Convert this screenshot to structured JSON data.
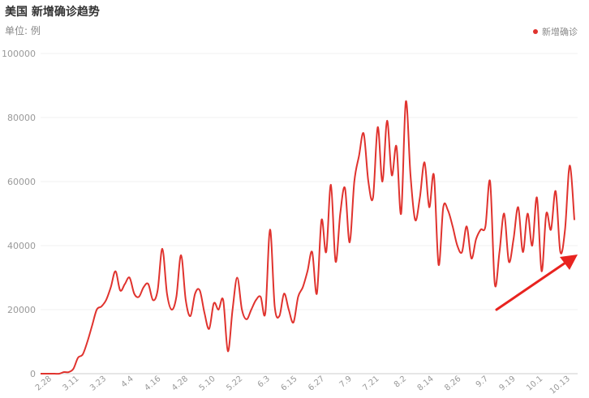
{
  "title": "美国 新增确诊趋势",
  "unit_label": "单位: 例",
  "colors": {
    "line": "#e0332e",
    "arrow": "#e8231f",
    "grid": "#f0f0f0",
    "axis": "#cccccc"
  },
  "chart_data": {
    "type": "line",
    "title": "美国 新增确诊趋势",
    "ylabel": "",
    "xlabel": "",
    "ylim": [
      0,
      100000
    ],
    "y_ticks": [
      0,
      20000,
      40000,
      60000,
      80000,
      100000
    ],
    "y_tick_labels": [
      "0",
      "20000",
      "40000",
      "60000",
      "80000",
      "100000"
    ],
    "x_tick_labels": [
      "2.28",
      "3.11",
      "3.23",
      "4.4",
      "4.16",
      "4.28",
      "5.10",
      "5.22",
      "6.3",
      "6.15",
      "6.27",
      "7.9",
      "7.21",
      "8.2",
      "8.14",
      "8.26",
      "9.7",
      "9.19",
      "10.1",
      "10.13"
    ],
    "grid": true,
    "legend_position": "top-right",
    "series": [
      {
        "name": "新增确诊",
        "x": [
          "2.28",
          "3.1",
          "3.3",
          "3.5",
          "3.7",
          "3.9",
          "3.11",
          "3.13",
          "3.15",
          "3.17",
          "3.19",
          "3.21",
          "3.23",
          "3.25",
          "3.27",
          "3.29",
          "3.31",
          "4.2",
          "4.4",
          "4.6",
          "4.8",
          "4.10",
          "4.12",
          "4.14",
          "4.16",
          "4.18",
          "4.20",
          "4.22",
          "4.24",
          "4.26",
          "4.28",
          "4.30",
          "5.2",
          "5.4",
          "5.6",
          "5.8",
          "5.10",
          "5.12",
          "5.14",
          "5.16",
          "5.18",
          "5.20",
          "5.22",
          "5.24",
          "5.26",
          "5.28",
          "5.30",
          "6.1",
          "6.3",
          "6.5",
          "6.7",
          "6.9",
          "6.11",
          "6.13",
          "6.15",
          "6.17",
          "6.19",
          "6.21",
          "6.23",
          "6.25",
          "6.27",
          "6.29",
          "7.1",
          "7.3",
          "7.5",
          "7.7",
          "7.9",
          "7.11",
          "7.13",
          "7.15",
          "7.17",
          "7.19",
          "7.21",
          "7.23",
          "7.25",
          "7.27",
          "7.29",
          "7.31",
          "8.2",
          "8.4",
          "8.6",
          "8.8",
          "8.10",
          "8.12",
          "8.14",
          "8.16",
          "8.18",
          "8.20",
          "8.22",
          "8.24",
          "8.26",
          "8.28",
          "8.30",
          "9.1",
          "9.3",
          "9.5",
          "9.7",
          "9.9",
          "9.11",
          "9.13",
          "9.15",
          "9.17",
          "9.19",
          "9.21",
          "9.23",
          "9.25",
          "9.27",
          "9.29",
          "10.1",
          "10.3",
          "10.5",
          "10.7",
          "10.9",
          "10.11",
          "10.13"
        ],
        "values": [
          0,
          0,
          0,
          0,
          0,
          500,
          500,
          1500,
          5000,
          6000,
          10000,
          15000,
          20000,
          21000,
          23000,
          27000,
          32000,
          26000,
          28000,
          30000,
          25000,
          24000,
          27000,
          28000,
          23000,
          26000,
          39000,
          25000,
          20000,
          24000,
          37000,
          23000,
          18000,
          25000,
          26000,
          19000,
          14000,
          22000,
          20000,
          23000,
          7000,
          20000,
          30000,
          20000,
          17000,
          20000,
          23000,
          24000,
          19000,
          45000,
          21000,
          18000,
          25000,
          20000,
          16000,
          24000,
          27000,
          32000,
          38000,
          25000,
          48000,
          38000,
          59000,
          35000,
          50000,
          58000,
          41000,
          60000,
          68000,
          75000,
          60000,
          55000,
          77000,
          60000,
          79000,
          62000,
          71000,
          50000,
          85000,
          62000,
          48000,
          55000,
          66000,
          52000,
          62000,
          34000,
          52000,
          51000,
          46000,
          40000,
          38000,
          46000,
          36000,
          42000,
          45000,
          46000,
          60000,
          28000,
          38000,
          50000,
          35000,
          42000,
          52000,
          38000,
          50000,
          40000,
          55000,
          32000,
          50000,
          45000,
          57000,
          38000,
          45000,
          65000,
          48000
        ]
      }
    ]
  }
}
